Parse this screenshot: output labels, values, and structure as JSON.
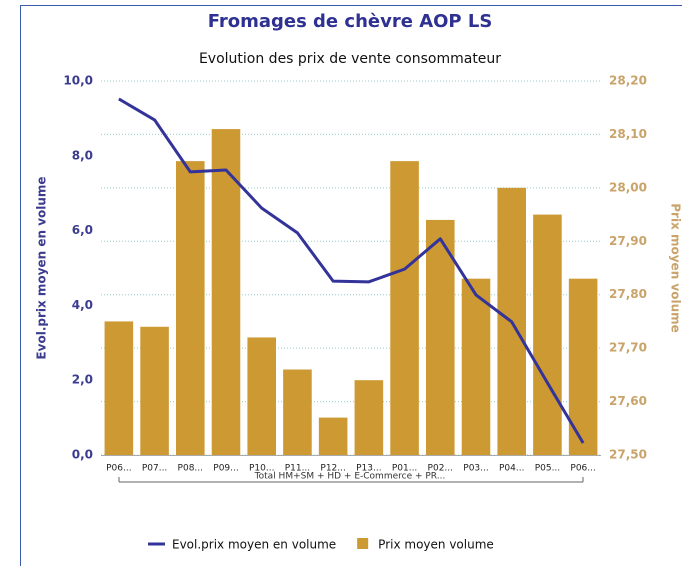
{
  "chart_data": {
    "type": "bar_line",
    "title": "Fromages de chèvre AOP LS",
    "subtitle": "Evolution des prix de vente consommateur",
    "ylabel": "Evol.prix moyen en volume",
    "y2label": "Prix moyen volume",
    "group_label": "Total HM+SM + HD + E-Commerce + PR...",
    "categories": [
      "P06...",
      "P07...",
      "P08...",
      "P09...",
      "P10...",
      "P11...",
      "P12...",
      "P13...",
      "P01...",
      "P02...",
      "P03...",
      "P04...",
      "P05...",
      "P06..."
    ],
    "series": [
      {
        "name": "Evol.prix moyen en volume",
        "kind": "line",
        "color": "#333399",
        "axis": "y",
        "values": [
          9.52,
          8.96,
          7.57,
          7.62,
          6.6,
          5.94,
          4.65,
          4.63,
          4.97,
          5.78,
          4.28,
          3.56,
          1.93,
          0.32
        ]
      },
      {
        "name": "Prix moyen volume",
        "kind": "bar",
        "color": "#cc9933",
        "axis": "y2",
        "values": [
          27.75,
          27.74,
          28.05,
          28.11,
          27.72,
          27.66,
          27.57,
          27.64,
          28.05,
          27.94,
          27.83,
          28.0,
          27.95,
          27.83
        ]
      }
    ],
    "ylim": [
      0,
      10
    ],
    "yticks": [
      {
        "value": 0,
        "label": "0,0"
      },
      {
        "value": 2,
        "label": "2,0"
      },
      {
        "value": 4,
        "label": "4,0"
      },
      {
        "value": 6,
        "label": "6,0"
      },
      {
        "value": 8,
        "label": "8,0"
      },
      {
        "value": 10,
        "label": "10,0"
      }
    ],
    "y2lim": [
      27.5,
      28.2
    ],
    "y2ticks": [
      {
        "value": 27.5,
        "label": "27,50"
      },
      {
        "value": 27.6,
        "label": "27,60"
      },
      {
        "value": 27.7,
        "label": "27,70"
      },
      {
        "value": 27.8,
        "label": "27,80"
      },
      {
        "value": 27.9,
        "label": "27,90"
      },
      {
        "value": 28.0,
        "label": "28,00"
      },
      {
        "value": 28.1,
        "label": "28,10"
      },
      {
        "value": 28.2,
        "label": "28,20"
      }
    ],
    "grid": true
  }
}
